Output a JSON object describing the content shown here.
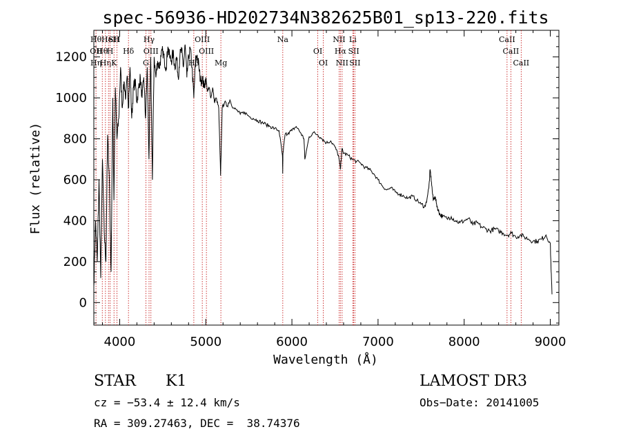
{
  "chart_data": {
    "type": "line",
    "title": "spec-56936-HD202734N382625B01_sp13-220.fits",
    "xlabel": "Wavelength (Å)",
    "ylabel": "Flux (relative)",
    "xlim": [
      3700,
      9100
    ],
    "ylim": [
      -110,
      1330
    ],
    "x_ticks": [
      4000,
      5000,
      6000,
      7000,
      8000,
      9000
    ],
    "y_ticks": [
      0,
      200,
      400,
      600,
      800,
      1000,
      1200
    ],
    "grid": false,
    "series": [
      {
        "values_x": [
          3700,
          3720,
          3740,
          3760,
          3780,
          3800,
          3820,
          3840,
          3860,
          3880,
          3900,
          3920,
          3933,
          3950,
          3968,
          3990,
          4010,
          4030,
          4050,
          4070,
          4090,
          4102,
          4120,
          4140,
          4160,
          4180,
          4200,
          4220,
          4240,
          4260,
          4280,
          4300,
          4320,
          4340,
          4360,
          4380,
          4400,
          4420,
          4440,
          4460,
          4480,
          4500,
          4520,
          4540,
          4560,
          4580,
          4600,
          4620,
          4640,
          4660,
          4680,
          4700,
          4720,
          4740,
          4760,
          4780,
          4800,
          4820,
          4840,
          4861,
          4880,
          4900,
          4920,
          4940,
          4960,
          4980,
          5000,
          5020,
          5040,
          5060,
          5080,
          5100,
          5120,
          5150,
          5172,
          5190,
          5220,
          5250,
          5280,
          5320,
          5360,
          5400,
          5450,
          5500,
          5550,
          5600,
          5650,
          5700,
          5750,
          5800,
          5850,
          5890,
          5893,
          5896,
          5920,
          5960,
          6000,
          6050,
          6100,
          6140,
          6150,
          6200,
          6250,
          6300,
          6350,
          6400,
          6450,
          6500,
          6540,
          6563,
          6580,
          6600,
          6650,
          6700,
          6750,
          6800,
          6850,
          6900,
          6950,
          7000,
          7050,
          7100,
          7150,
          7200,
          7250,
          7300,
          7350,
          7400,
          7450,
          7500,
          7550,
          7590,
          7605,
          7620,
          7640,
          7660,
          7680,
          7700,
          7720,
          7750,
          7800,
          7850,
          7900,
          7950,
          8000,
          8050,
          8100,
          8150,
          8200,
          8250,
          8300,
          8350,
          8400,
          8450,
          8500,
          8550,
          8600,
          8650,
          8700,
          8750,
          8800,
          8850,
          8900,
          8950,
          9000,
          9010,
          9020
        ],
        "values_y": [
          80,
          400,
          200,
          600,
          120,
          700,
          350,
          200,
          820,
          600,
          150,
          1000,
          500,
          1050,
          800,
          900,
          1150,
          950,
          1080,
          1000,
          1100,
          950,
          1150,
          900,
          1050,
          1080,
          980,
          1050,
          1100,
          1000,
          1100,
          900,
          1150,
          700,
          1200,
          600,
          1200,
          1100,
          1180,
          1150,
          1200,
          1230,
          1180,
          1150,
          1250,
          1200,
          1180,
          1220,
          1150,
          1200,
          1100,
          1210,
          1230,
          1150,
          1260,
          1100,
          1200,
          1240,
          1150,
          1000,
          1180,
          1210,
          1150,
          1080,
          1100,
          1050,
          1100,
          1030,
          1050,
          1000,
          1050,
          980,
          1000,
          950,
          620,
          950,
          980,
          960,
          990,
          950,
          940,
          920,
          930,
          910,
          900,
          890,
          880,
          870,
          860,
          850,
          840,
          720,
          630,
          730,
          820,
          830,
          840,
          860,
          830,
          800,
          700,
          810,
          830,
          820,
          800,
          780,
          790,
          760,
          720,
          650,
          750,
          730,
          720,
          700,
          690,
          680,
          660,
          650,
          630,
          600,
          570,
          550,
          560,
          540,
          530,
          520,
          510,
          520,
          500,
          480,
          470,
          560,
          650,
          590,
          500,
          520,
          480,
          450,
          430,
          420,
          410,
          420,
          400,
          390,
          400,
          410,
          380,
          390,
          370,
          360,
          350,
          360,
          350,
          340,
          330,
          340,
          320,
          330,
          320,
          310,
          300,
          300,
          310,
          330,
          290,
          150,
          40
        ]
      }
    ],
    "lines": [
      {
        "x": 3725,
        "labels": [
          "Hθ",
          "OII",
          "Hη"
        ]
      },
      {
        "x": 3798,
        "labels": [
          "Hθ"
        ]
      },
      {
        "x": 3835,
        "labels": [
          "Hη"
        ]
      },
      {
        "x": 3870,
        "labels": [
          "HeI"
        ]
      },
      {
        "x": 3889,
        "labels": [
          "H"
        ]
      },
      {
        "x": 3934,
        "labels": [
          "K",
          "SII"
        ]
      },
      {
        "x": 3969,
        "labels": [
          "H"
        ]
      },
      {
        "x": 4102,
        "labels": [
          "Hδ"
        ]
      },
      {
        "x": 4304,
        "labels": [
          "G"
        ]
      },
      {
        "x": 4341,
        "labels": [
          "Hγ"
        ]
      },
      {
        "x": 4363,
        "labels": [
          "OIII"
        ]
      },
      {
        "x": 4861,
        "labels": [
          "Hβ"
        ]
      },
      {
        "x": 4959,
        "labels": [
          "OIII"
        ]
      },
      {
        "x": 5007,
        "labels": [
          "OIII"
        ]
      },
      {
        "x": 5175,
        "labels": [
          "Mg"
        ]
      },
      {
        "x": 5894,
        "labels": [
          "Na"
        ]
      },
      {
        "x": 6300,
        "labels": [
          "OI"
        ]
      },
      {
        "x": 6364,
        "labels": [
          "OI"
        ]
      },
      {
        "x": 6548,
        "labels": [
          "NII"
        ]
      },
      {
        "x": 6563,
        "labels": [
          "Hα"
        ]
      },
      {
        "x": 6583,
        "labels": [
          "NII"
        ]
      },
      {
        "x": 6707,
        "labels": [
          "Li"
        ]
      },
      {
        "x": 6717,
        "labels": [
          "SII"
        ]
      },
      {
        "x": 6731,
        "labels": [
          "SII"
        ]
      },
      {
        "x": 8498,
        "labels": [
          "CaII"
        ]
      },
      {
        "x": 8542,
        "labels": [
          "CaII"
        ]
      },
      {
        "x": 8662,
        "labels": [
          "CaII"
        ]
      }
    ]
  },
  "info": {
    "class_label": "STAR",
    "subclass": "K1",
    "survey": "LAMOST DR3",
    "cz": "cz = −53.4 ± 12.4 km/s",
    "obs_date": "Obs−Date: 20141005",
    "coords": "RA = 309.27463, DEC =  38.74376"
  },
  "colors": {
    "spectrum": "#000000",
    "line_markers": "#c00000"
  }
}
